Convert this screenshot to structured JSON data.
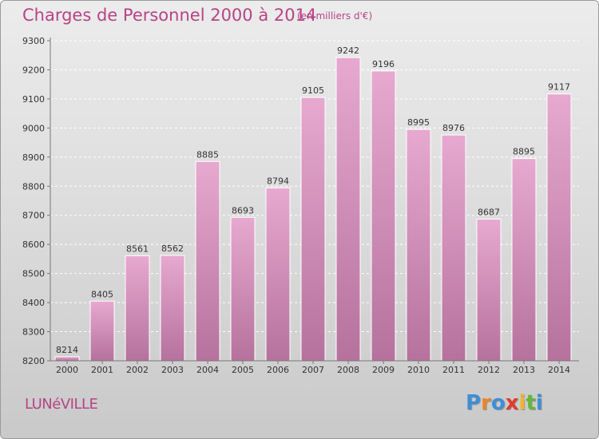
{
  "chart_data": {
    "type": "bar",
    "title": "Charges de Personnel 2000 à 2014",
    "subtitle": "(en milliers d'€)",
    "categories": [
      "2000",
      "2001",
      "2002",
      "2003",
      "2004",
      "2005",
      "2006",
      "2007",
      "2008",
      "2009",
      "2010",
      "2011",
      "2012",
      "2013",
      "2014"
    ],
    "values": [
      8214,
      8405,
      8561,
      8562,
      8885,
      8693,
      8794,
      9105,
      9242,
      9196,
      8995,
      8976,
      8687,
      8895,
      9117
    ],
    "ylim": [
      8200,
      9300
    ],
    "yticks": [
      8200,
      8300,
      8400,
      8500,
      8600,
      8700,
      8800,
      8900,
      9000,
      9100,
      9200,
      9300
    ],
    "grid": true,
    "bar_color": "#d48fba"
  },
  "footer": {
    "city": "LUNéVILLE",
    "brand_letters": [
      {
        "ch": "P",
        "color": "#3d8fd6"
      },
      {
        "ch": "r",
        "color": "#e9852a"
      },
      {
        "ch": "o",
        "color": "#3d8fd6"
      },
      {
        "ch": "x",
        "color": "#e23b2e"
      },
      {
        "ch": "i",
        "color": "#f0b52a"
      },
      {
        "ch": "t",
        "color": "#67b53c"
      },
      {
        "ch": "i",
        "color": "#3d8fd6"
      }
    ]
  }
}
